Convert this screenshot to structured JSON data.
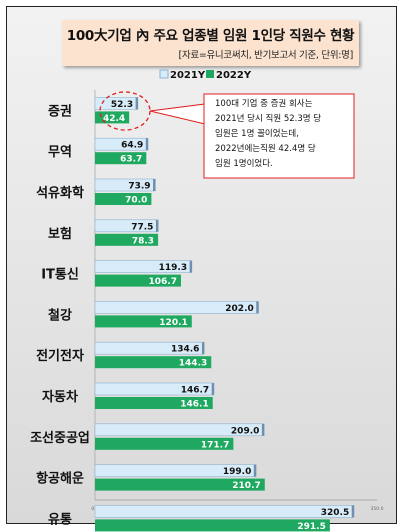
{
  "header": {
    "title": "100大기업 內 주요 업종별 임원 1인당 직원수 현황",
    "subtitle": "[자료=유니코써치, 반기보고서 기준, 단위:명]"
  },
  "colors": {
    "series_2021": "#d8ebf8",
    "series_2021_stroke": "#8fb3d0",
    "series_2022": "#1ea860",
    "callout_border": "#e02020"
  },
  "annotation": {
    "lines": [
      "100대 기업 중 증권 회사는",
      "2021년 당시 직원 52.3명 당",
      "임원은 1명 꼴이었는데,",
      "2022년에는직원 42.4명 당",
      "임원 1명이었다."
    ]
  },
  "chart_data": {
    "type": "bar",
    "orientation": "horizontal",
    "categories": [
      "증권",
      "무역",
      "석유화학",
      "보험",
      "IT통신",
      "철강",
      "전기전자",
      "자동차",
      "조선중공업",
      "항공해운",
      "유통"
    ],
    "series": [
      {
        "name": "2021Y",
        "values": [
          52.3,
          64.9,
          73.9,
          77.5,
          119.3,
          202.0,
          134.6,
          146.7,
          209.0,
          199.0,
          320.5
        ]
      },
      {
        "name": "2022Y",
        "values": [
          42.4,
          63.7,
          70.0,
          78.3,
          106.7,
          120.1,
          144.3,
          146.1,
          171.7,
          210.7,
          291.5
        ]
      }
    ],
    "xlim": [
      0,
      350
    ],
    "x_ticks": [
      "0.0",
      "50.0",
      "100.0",
      "150.0",
      "200.0",
      "250.0",
      "300.0",
      "350.0"
    ],
    "legend": "top"
  }
}
